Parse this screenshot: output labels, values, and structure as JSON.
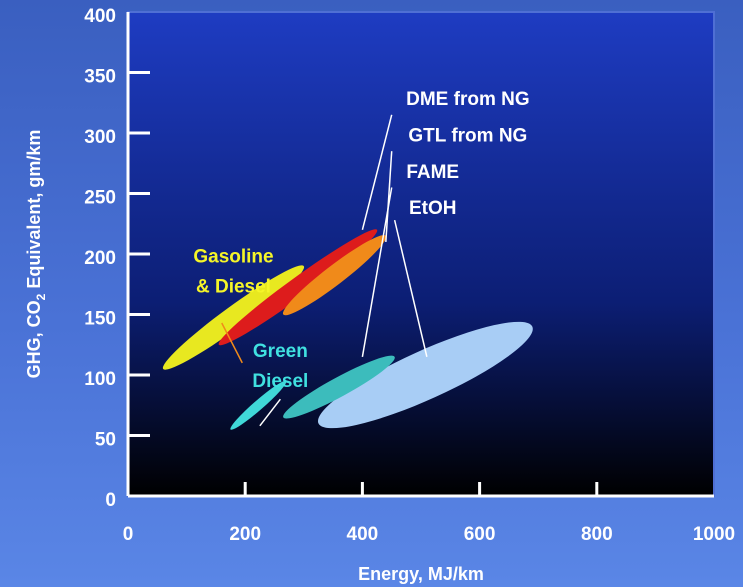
{
  "chart_data": {
    "type": "scatter",
    "title": "",
    "xlabel": "Energy, MJ/km",
    "ylabel_parts": [
      "GHG, CO",
      "2",
      " Equivalent, gm/km"
    ],
    "xlim": [
      0,
      1000
    ],
    "ylim": [
      0,
      400
    ],
    "x_ticks": [
      0,
      200,
      400,
      600,
      800,
      1000
    ],
    "y_ticks": [
      0,
      50,
      100,
      150,
      200,
      250,
      300,
      350,
      400
    ],
    "regions": [
      {
        "key": "ethoh",
        "color": "#a8cdf5",
        "from": [
          325,
          60
        ],
        "to": [
          690,
          140
        ],
        "width": 20
      },
      {
        "key": "fame",
        "color": "#3cbcbc",
        "from": [
          265,
          65
        ],
        "to": [
          455,
          115
        ],
        "width": 8
      },
      {
        "key": "green_diesel",
        "color": "#40d8d8",
        "from": [
          175,
          55
        ],
        "to": [
          270,
          95
        ],
        "width": 4
      },
      {
        "key": "gasoline_diesel",
        "color": "#e8e820",
        "from": [
          60,
          105
        ],
        "to": [
          300,
          190
        ],
        "width": 9
      },
      {
        "key": "dme",
        "color": "#dd1c1c",
        "from": [
          155,
          125
        ],
        "to": [
          425,
          220
        ],
        "width": 8
      },
      {
        "key": "gtl",
        "color": "#f08a1a",
        "from": [
          265,
          150
        ],
        "to": [
          440,
          215
        ],
        "width": 8
      }
    ],
    "labels": [
      {
        "key": "dme",
        "text": "DME from NG",
        "at": [
          580,
          323
        ],
        "pointer": [
          [
            450,
            315
          ],
          [
            400,
            220
          ]
        ],
        "color": "#ffffff"
      },
      {
        "key": "gtl",
        "text": "GTL from NG",
        "at": [
          580,
          293
        ],
        "pointer": [
          [
            450,
            285
          ],
          [
            440,
            210
          ]
        ],
        "color": "#ffffff"
      },
      {
        "key": "fame",
        "text": "FAME",
        "at": [
          520,
          263
        ],
        "pointer": [
          [
            450,
            255
          ],
          [
            400,
            115
          ]
        ],
        "color": "#ffffff"
      },
      {
        "key": "ethoh",
        "text": "EtOH",
        "at": [
          520,
          233
        ],
        "pointer": [
          [
            455,
            228
          ],
          [
            510,
            115
          ]
        ],
        "color": "#ffffff"
      },
      {
        "key": "gasoline_diesel",
        "text": "Gasoline",
        "at": [
          180,
          193
        ],
        "pointer": [
          [
            160,
            143
          ],
          [
            195,
            110
          ]
        ],
        "color": "#f5f528"
      },
      {
        "key": "gasoline_diesel_2",
        "text": "& Diesel",
        "at": [
          180,
          168
        ],
        "color": "#f5f528"
      },
      {
        "key": "green_diesel",
        "text": "Green",
        "at": [
          260,
          115
        ],
        "pointer": [
          [
            260,
            80
          ],
          [
            225,
            58
          ]
        ],
        "color": "#40e0e0"
      },
      {
        "key": "green_diesel_2",
        "text": "Diesel",
        "at": [
          260,
          90
        ],
        "color": "#40e0e0"
      }
    ],
    "grid": false,
    "legend": "none"
  }
}
